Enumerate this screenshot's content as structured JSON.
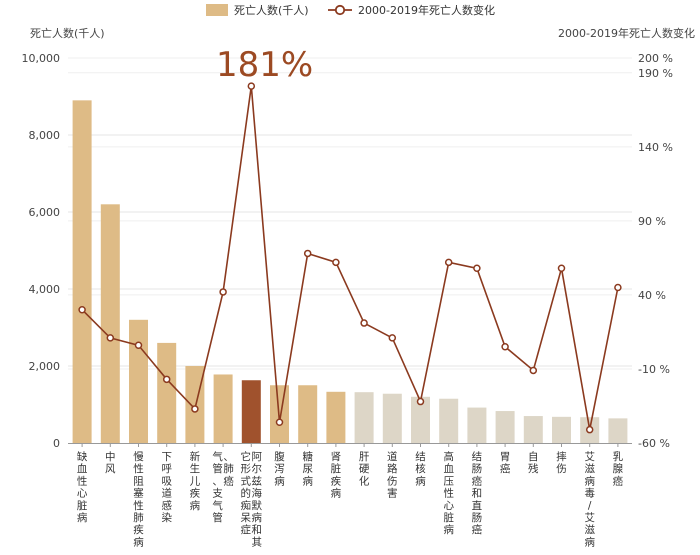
{
  "chart_data": {
    "type": "bar",
    "legend": {
      "position": "top",
      "bar_label": "死亡人数(千人)",
      "line_label": "2000-2019年死亡人数变化"
    },
    "ylabel_left": "死亡人数(千人)",
    "ylabel_right": "2000-2019年死亡人数变化",
    "ylim_left": [
      0,
      10000
    ],
    "ylim_right": [
      -60,
      200
    ],
    "left_ticks": [
      "0",
      "2,000",
      "4,000",
      "6,000",
      "8,000",
      "10,000"
    ],
    "left_tick_values": [
      0,
      2000,
      4000,
      6000,
      8000,
      10000
    ],
    "right_ticks": [
      "-60 %",
      "-10 %",
      "40 %",
      "90 %",
      "140 %",
      "190 %",
      "200 %"
    ],
    "right_tick_values": [
      -60,
      -10,
      40,
      90,
      140,
      190,
      200
    ],
    "categories": [
      "缺血性心脏病",
      "中风",
      "慢性阻塞性肺疾病",
      "下呼吸道感染",
      "新生儿疾病",
      "气管、支气管、肺癌",
      "阿尔兹海默病和其它形式的痴呆症",
      "腹泻病",
      "糖尿病",
      "肾脏疾病",
      "肝硬化",
      "道路伤害",
      "结核病",
      "高血压性心脏病",
      "结肠癌和直肠癌",
      "胃癌",
      "自残",
      "摔伤",
      "艾滋病毒/艾滋病",
      "乳腺癌"
    ],
    "series": [
      {
        "name": "死亡人数(千人)",
        "kind": "bar",
        "values": [
          8900,
          6200,
          3200,
          2600,
          2000,
          1780,
          1630,
          1500,
          1500,
          1330,
          1320,
          1280,
          1200,
          1150,
          920,
          830,
          700,
          680,
          670,
          640
        ]
      },
      {
        "name": "2000-2019年死亡人数变化",
        "kind": "line",
        "values": [
          30,
          11,
          6,
          -17,
          -37,
          42,
          181,
          -46,
          68,
          62,
          21,
          11,
          -32,
          62,
          58,
          5,
          -11,
          58,
          -51,
          45
        ]
      }
    ],
    "bar_colors": [
      "#debb86",
      "#debb86",
      "#debb86",
      "#debb86",
      "#debb86",
      "#debb86",
      "#a0522d",
      "#debb86",
      "#debb86",
      "#debb86",
      "#ddd6c7",
      "#ddd6c7",
      "#ddd6c7",
      "#ddd6c7",
      "#ddd6c7",
      "#ddd6c7",
      "#ddd6c7",
      "#ddd6c7",
      "#ddd6c7",
      "#ddd6c7"
    ],
    "line_color": "#8b3a1f",
    "callout": "181%",
    "grid": true
  }
}
